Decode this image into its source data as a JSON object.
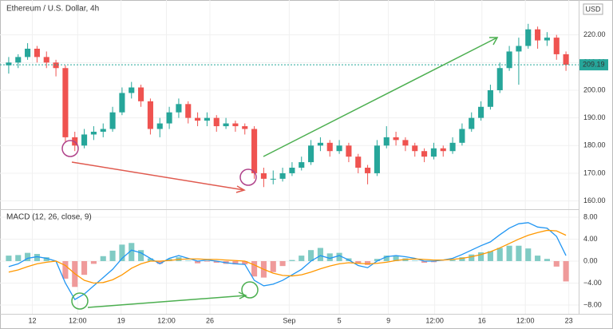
{
  "chart_data": [
    {
      "type": "candlestick",
      "title": "Ethereum / U.S. Dollar, 4h",
      "currency": "USD",
      "up_color": "#26a69a",
      "down_color": "#ef5350",
      "xlim": [
        0,
        60
      ],
      "xticks": [
        {
          "value": 3,
          "label": "12"
        },
        {
          "value": 7.8,
          "label": "12:00"
        },
        {
          "value": 12.4,
          "label": "19"
        },
        {
          "value": 17.2,
          "label": "12:00"
        },
        {
          "value": 21.8,
          "label": "26"
        },
        {
          "value": 30.2,
          "label": "Sep"
        },
        {
          "value": 35.5,
          "label": "5"
        },
        {
          "value": 40.7,
          "label": "9"
        },
        {
          "value": 45.6,
          "label": "12:00"
        },
        {
          "value": 50.6,
          "label": "16"
        },
        {
          "value": 55.2,
          "label": "12:00"
        },
        {
          "value": 59.8,
          "label": "23"
        }
      ],
      "ylim": [
        157,
        232.6
      ],
      "yticks": [
        {
          "value": 160,
          "label": "160.00"
        },
        {
          "value": 170,
          "label": "170.00"
        },
        {
          "value": 180,
          "label": "180.00"
        },
        {
          "value": 190,
          "label": "190.00"
        },
        {
          "value": 200,
          "label": "200.00"
        },
        {
          "value": 210,
          "label": "210.00"
        },
        {
          "value": 220,
          "label": "220.00"
        }
      ],
      "grid": true,
      "last_price": 209.19,
      "candles": [
        [
          209,
          212,
          206,
          210
        ],
        [
          210,
          213,
          208,
          212
        ],
        [
          212,
          217,
          211,
          215
        ],
        [
          215,
          216,
          210,
          212
        ],
        [
          212,
          214,
          208,
          210
        ],
        [
          210,
          211,
          205,
          208
        ],
        [
          208,
          209,
          181,
          183
        ],
        [
          183,
          185,
          178,
          180
        ],
        [
          180,
          186,
          179,
          184
        ],
        [
          184,
          187,
          182,
          185
        ],
        [
          185,
          188,
          183,
          186
        ],
        [
          186,
          194,
          185,
          192
        ],
        [
          192,
          201,
          191,
          199
        ],
        [
          199,
          203,
          197,
          201
        ],
        [
          201,
          202,
          194,
          196
        ],
        [
          196,
          197,
          184,
          186
        ],
        [
          186,
          190,
          183,
          188
        ],
        [
          188,
          194,
          186,
          192
        ],
        [
          192,
          197,
          190,
          195
        ],
        [
          195,
          196,
          188,
          190
        ],
        [
          190,
          192,
          187,
          189
        ],
        [
          189,
          192,
          187,
          190
        ],
        [
          190,
          191,
          185,
          187
        ],
        [
          187,
          190,
          186,
          188
        ],
        [
          188,
          189,
          185,
          187
        ],
        [
          187,
          188,
          184,
          186
        ],
        [
          186,
          187,
          168,
          170
        ],
        [
          170,
          172,
          165,
          168
        ],
        [
          168,
          171,
          166,
          168
        ],
        [
          168,
          172,
          167,
          170
        ],
        [
          170,
          174,
          169,
          172
        ],
        [
          172,
          176,
          171,
          174
        ],
        [
          174,
          182,
          173,
          180
        ],
        [
          180,
          183,
          178,
          181
        ],
        [
          181,
          182,
          176,
          178
        ],
        [
          178,
          182,
          177,
          180
        ],
        [
          180,
          181,
          174,
          176
        ],
        [
          176,
          177,
          170,
          172
        ],
        [
          172,
          173,
          166,
          170
        ],
        [
          170,
          182,
          169,
          180
        ],
        [
          180,
          187,
          179,
          183
        ],
        [
          183,
          185,
          180,
          182
        ],
        [
          182,
          183,
          178,
          180
        ],
        [
          180,
          181,
          176,
          178
        ],
        [
          178,
          179,
          174,
          176
        ],
        [
          176,
          181,
          175,
          179
        ],
        [
          179,
          180,
          176,
          178
        ],
        [
          178,
          183,
          177,
          181
        ],
        [
          181,
          188,
          180,
          186
        ],
        [
          186,
          192,
          185,
          190
        ],
        [
          190,
          196,
          189,
          194
        ],
        [
          194,
          202,
          193,
          200
        ],
        [
          200,
          210,
          199,
          208
        ],
        [
          208,
          216,
          207,
          214
        ],
        [
          214,
          219,
          202,
          216
        ],
        [
          216,
          224,
          215,
          222
        ],
        [
          222,
          223,
          215,
          218
        ],
        [
          218,
          221,
          216,
          219
        ],
        [
          219,
          220,
          211,
          213
        ],
        [
          213,
          214,
          207,
          209.19
        ]
      ]
    },
    {
      "type": "macd",
      "title": "MACD (12, 26, close, 9)",
      "xlim": [
        0,
        60
      ],
      "ylim": [
        -9.6,
        9.3
      ],
      "yticks": [
        {
          "value": 8,
          "label": "8.00"
        },
        {
          "value": 4,
          "label": "4.00"
        },
        {
          "value": 0,
          "label": "0.00"
        },
        {
          "value": -4,
          "label": "−4.00"
        },
        {
          "value": -8,
          "label": "−8.00"
        }
      ],
      "macd": {
        "color": "#2196f3",
        "values": [
          -1,
          -0.5,
          0.5,
          0.8,
          0.5,
          0,
          -4,
          -7,
          -6,
          -4.5,
          -3,
          -1.5,
          0.5,
          2,
          1.5,
          0.5,
          -0.5,
          0.5,
          1,
          0.5,
          0,
          0.2,
          0,
          -0.3,
          -0.5,
          -0.6,
          -3.5,
          -4.5,
          -4.2,
          -3.5,
          -2.5,
          -1.5,
          0,
          1,
          0.5,
          1,
          0.2,
          -0.8,
          -1.2,
          0,
          0.8,
          1,
          0.8,
          0.5,
          0,
          0,
          0.2,
          0.5,
          1.2,
          2,
          2.8,
          3.5,
          4.8,
          6,
          6.8,
          7,
          6.2,
          6,
          4.5,
          1
        ]
      },
      "signal": {
        "color": "#ff9800",
        "values": [
          -2,
          -1.6,
          -1,
          -0.5,
          -0.2,
          0,
          -0.8,
          -2.3,
          -3.5,
          -4,
          -3.9,
          -3.4,
          -2.5,
          -1.3,
          -0.5,
          0,
          0,
          0.1,
          0.3,
          0.4,
          0.4,
          0.3,
          0.3,
          0.2,
          0.1,
          0,
          -0.7,
          -1.5,
          -2.2,
          -2.6,
          -2.7,
          -2.5,
          -2,
          -1.4,
          -0.9,
          -0.5,
          -0.3,
          -0.4,
          -0.5,
          -0.4,
          -0.2,
          0.1,
          0.3,
          0.4,
          0.3,
          0.2,
          0.2,
          0.3,
          0.5,
          0.8,
          1.2,
          1.7,
          2.4,
          3.2,
          4,
          4.7,
          5.2,
          5.6,
          5.5,
          4.7
        ]
      },
      "histogram": {
        "up_color": "#80cbc4",
        "down_color": "#ef9a9a",
        "values": [
          1,
          1.1,
          1.5,
          1.3,
          0.7,
          0,
          -3.2,
          -4.7,
          -2.5,
          -0.5,
          0.9,
          1.9,
          3,
          3.3,
          2,
          0.5,
          -0.5,
          0.4,
          0.7,
          0.1,
          -0.4,
          -0.1,
          -0.3,
          -0.5,
          -0.6,
          -0.6,
          -2.8,
          -3,
          -2,
          -0.9,
          0.2,
          1,
          2,
          2.4,
          1.4,
          1.5,
          0.5,
          -0.4,
          -0.7,
          0.4,
          1,
          0.9,
          0.5,
          0.1,
          -0.3,
          -0.2,
          0,
          0.2,
          0.7,
          1.2,
          1.6,
          1.8,
          2.4,
          2.8,
          2.8,
          2.3,
          1,
          0.4,
          -1,
          -3.7
        ]
      }
    }
  ]
}
